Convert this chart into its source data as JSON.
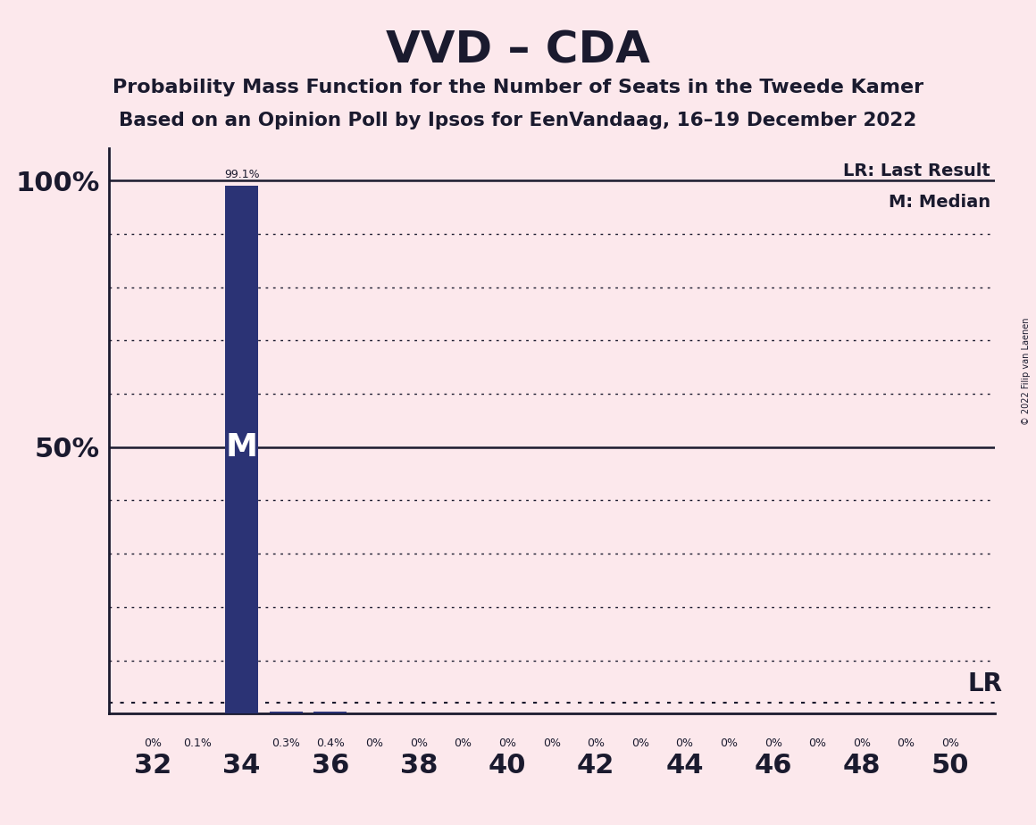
{
  "title": "VVD – CDA",
  "subtitle1": "Probability Mass Function for the Number of Seats in the Tweede Kamer",
  "subtitle2": "Based on an Opinion Poll by Ipsos for EenVandaag, 16–19 December 2022",
  "copyright": "© 2022 Filip van Laenen",
  "seats": [
    32,
    33,
    34,
    35,
    36,
    37,
    38,
    39,
    40,
    41,
    42,
    43,
    44,
    45,
    46,
    47,
    48,
    49,
    50
  ],
  "probabilities": [
    0.0,
    0.1,
    99.1,
    0.3,
    0.4,
    0.0,
    0.0,
    0.0,
    0.0,
    0.0,
    0.0,
    0.0,
    0.0,
    0.0,
    0.0,
    0.0,
    0.0,
    0.0,
    0.0
  ],
  "bar_labels": [
    "0%",
    "0.1%",
    "99.1%",
    "0.3%",
    "0.4%",
    "0%",
    "0%",
    "0%",
    "0%",
    "0%",
    "0%",
    "0%",
    "0%",
    "0%",
    "0%",
    "0%",
    "0%",
    "0%",
    "0%"
  ],
  "bar_color": "#2b3375",
  "background_color": "#fce8ec",
  "text_color": "#1a1a2e",
  "median_seat": 34,
  "lr_seat": 50,
  "lr_value": 2.0,
  "xlim": [
    31,
    51
  ],
  "ylim": [
    0,
    106
  ],
  "legend_lr": "LR: Last Result",
  "legend_m": "M: Median",
  "xtick_seats": [
    32,
    34,
    36,
    38,
    40,
    42,
    44,
    46,
    48,
    50
  ]
}
